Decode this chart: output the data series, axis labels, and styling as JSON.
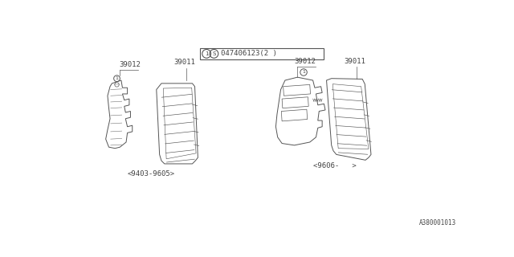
{
  "bg_color": "#ffffff",
  "line_color": "#555555",
  "text_color": "#444444",
  "fig_width": 6.4,
  "fig_height": 3.2,
  "watermark": "A380001013",
  "part_label_left_1": "39012",
  "part_label_left_2": "39011",
  "date_left": "<9403-9605>",
  "part_label_right_1": "39012",
  "part_label_right_2": "39011",
  "date_right": "<9606-   >",
  "callout_label": "1",
  "bottom_text": "047406123(2 )"
}
